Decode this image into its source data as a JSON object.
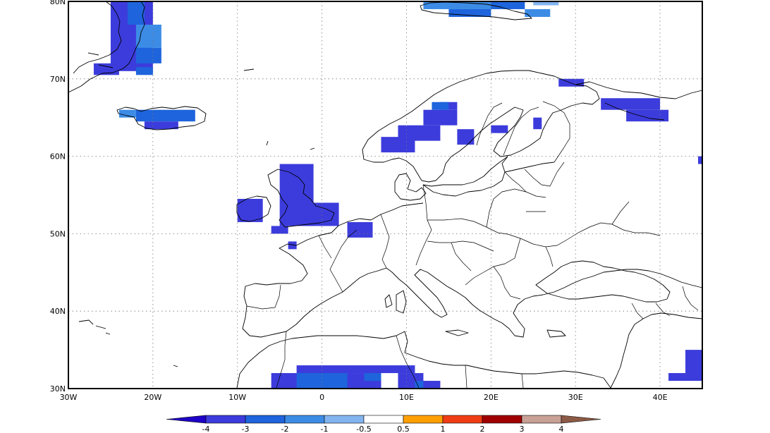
{
  "map": {
    "lon_labels": [
      "30W",
      "20W",
      "10W",
      "0",
      "10E",
      "20E",
      "30E",
      "40E"
    ],
    "lat_labels": [
      "80N",
      "70N",
      "60N",
      "50N",
      "40N",
      "30N"
    ],
    "lon_values": [
      -30,
      -20,
      -10,
      0,
      10,
      20,
      30,
      40
    ],
    "lat_values": [
      80,
      70,
      60,
      50,
      40,
      30
    ],
    "lon_range": [
      -30,
      45
    ],
    "lat_range": [
      30,
      80
    ],
    "gridlines": true
  },
  "colorbar": {
    "labels": [
      "-4",
      "-3",
      "-2",
      "-1",
      "-0.5",
      "0.5",
      "1",
      "2",
      "3",
      "4"
    ],
    "boundaries": [
      -4,
      -3,
      -2,
      -1,
      -0.5,
      0.5,
      1,
      2,
      3,
      4
    ],
    "colors": [
      "#1e00c8",
      "#3c3cdc",
      "#1e64dc",
      "#3c8ce6",
      "#82b4f0",
      "#ffffff",
      "#ffa000",
      "#f03c14",
      "#a00000",
      "#c8a096",
      "#8c5a46"
    ]
  },
  "anomaly_cells": [
    {
      "lon": [
        -25,
        -20
      ],
      "lat": [
        71,
        80
      ],
      "class": 1
    },
    {
      "lon": [
        -23,
        -21
      ],
      "lat": [
        77,
        80
      ],
      "class": 2
    },
    {
      "lon": [
        -22,
        -19
      ],
      "lat": [
        74,
        77
      ],
      "class": 3
    },
    {
      "lon": [
        -22,
        -19
      ],
      "lat": [
        72,
        74
      ],
      "class": 2
    },
    {
      "lon": [
        -27,
        -24
      ],
      "lat": [
        70.5,
        72
      ],
      "class": 1
    },
    {
      "lon": [
        -22,
        -20
      ],
      "lat": [
        70.5,
        71.5
      ],
      "class": 2
    },
    {
      "lon": [
        -24,
        -22
      ],
      "lat": [
        65,
        66
      ],
      "class": 3
    },
    {
      "lon": [
        -22,
        -15
      ],
      "lat": [
        64.5,
        66
      ],
      "class": 2
    },
    {
      "lon": [
        -21,
        -17
      ],
      "lat": [
        63.5,
        64.5
      ],
      "class": 1
    },
    {
      "lon": [
        12,
        22
      ],
      "lat": [
        79,
        80
      ],
      "class": 3
    },
    {
      "lon": [
        15,
        20
      ],
      "lat": [
        78,
        79
      ],
      "class": 2
    },
    {
      "lon": [
        20,
        24
      ],
      "lat": [
        79,
        80
      ],
      "class": 2
    },
    {
      "lon": [
        24,
        27
      ],
      "lat": [
        78,
        79
      ],
      "class": 3
    },
    {
      "lon": [
        25,
        28
      ],
      "lat": [
        79.5,
        80
      ],
      "class": 4
    },
    {
      "lon": [
        7,
        11
      ],
      "lat": [
        60.5,
        62.5
      ],
      "class": 1
    },
    {
      "lon": [
        9,
        14
      ],
      "lat": [
        62,
        64
      ],
      "class": 1
    },
    {
      "lon": [
        12,
        16
      ],
      "lat": [
        64,
        66
      ],
      "class": 1
    },
    {
      "lon": [
        14,
        16
      ],
      "lat": [
        66,
        67
      ],
      "class": 1
    },
    {
      "lon": [
        13,
        15
      ],
      "lat": [
        66,
        67
      ],
      "class": 2
    },
    {
      "lon": [
        16,
        18
      ],
      "lat": [
        61.5,
        63.5
      ],
      "class": 1
    },
    {
      "lon": [
        20,
        22
      ],
      "lat": [
        63,
        64
      ],
      "class": 1
    },
    {
      "lon": [
        25,
        26
      ],
      "lat": [
        63.5,
        65
      ],
      "class": 1
    },
    {
      "lon": [
        28,
        31
      ],
      "lat": [
        69,
        70
      ],
      "class": 1
    },
    {
      "lon": [
        33,
        40
      ],
      "lat": [
        66,
        67.5
      ],
      "class": 1
    },
    {
      "lon": [
        36,
        41
      ],
      "lat": [
        64.5,
        66
      ],
      "class": 1
    },
    {
      "lon": [
        -10,
        -7
      ],
      "lat": [
        51.5,
        54.5
      ],
      "class": 1
    },
    {
      "lon": [
        -5,
        -1
      ],
      "lat": [
        51,
        59
      ],
      "class": 1
    },
    {
      "lon": [
        -2,
        2
      ],
      "lat": [
        51,
        54
      ],
      "class": 1
    },
    {
      "lon": [
        -6,
        -4
      ],
      "lat": [
        50,
        51
      ],
      "class": 1
    },
    {
      "lon": [
        3,
        6
      ],
      "lat": [
        49.5,
        51.5
      ],
      "class": 1
    },
    {
      "lon": [
        -4,
        -3
      ],
      "lat": [
        48,
        49
      ],
      "class": 1
    },
    {
      "lon": [
        44.5,
        45
      ],
      "lat": [
        59,
        60
      ],
      "class": 1
    },
    {
      "lon": [
        23,
        29
      ],
      "lat": [
        41,
        42
      ],
      "class": 5
    },
    {
      "lon": [
        25,
        31
      ],
      "lat": [
        40,
        41
      ],
      "class": 5
    },
    {
      "lon": [
        23,
        27
      ],
      "lat": [
        38.5,
        40
      ],
      "class": 5
    },
    {
      "lon": [
        26,
        31
      ],
      "lat": [
        42,
        45
      ],
      "class": 5
    },
    {
      "lon": [
        31,
        33
      ],
      "lat": [
        40,
        41
      ],
      "class": 5
    },
    {
      "lon": [
        34,
        37
      ],
      "lat": [
        40,
        41
      ],
      "class": 5
    },
    {
      "lon": [
        33,
        37
      ],
      "lat": [
        42,
        43
      ],
      "class": 5
    },
    {
      "lon": [
        38,
        41
      ],
      "lat": [
        41.5,
        43
      ],
      "class": 5
    },
    {
      "lon": [
        41,
        43
      ],
      "lat": [
        40,
        42
      ],
      "class": 5
    },
    {
      "lon": [
        33,
        35
      ],
      "lat": [
        30,
        31
      ],
      "class": 5
    },
    {
      "lon": [
        -6,
        7
      ],
      "lat": [
        30,
        32
      ],
      "class": 1
    },
    {
      "lon": [
        -3,
        11
      ],
      "lat": [
        32,
        33
      ],
      "class": 1
    },
    {
      "lon": [
        9,
        12
      ],
      "lat": [
        30,
        32
      ],
      "class": 1
    },
    {
      "lon": [
        -3,
        3
      ],
      "lat": [
        30,
        32
      ],
      "class": 2
    },
    {
      "lon": [
        5,
        7
      ],
      "lat": [
        31,
        32
      ],
      "class": 2
    },
    {
      "lon": [
        11,
        12
      ],
      "lat": [
        30,
        31
      ],
      "class": 2
    },
    {
      "lon": [
        12,
        14
      ],
      "lat": [
        30,
        31
      ],
      "class": 1
    },
    {
      "lon": [
        43,
        45
      ],
      "lat": [
        31,
        35
      ],
      "class": 1
    },
    {
      "lon": [
        41,
        43
      ],
      "lat": [
        31,
        32
      ],
      "class": 1
    }
  ]
}
